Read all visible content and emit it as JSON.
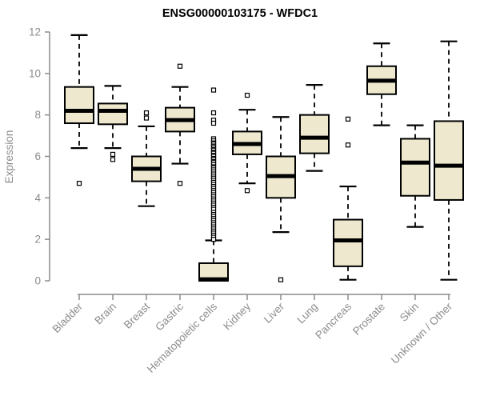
{
  "chart_data": {
    "type": "boxplot",
    "title": "ENSG00000103175 - WFDC1",
    "ylabel": "Expression",
    "xlabel": "",
    "ylim": [
      0,
      12
    ],
    "yticks": [
      0,
      2,
      4,
      6,
      8,
      10,
      12
    ],
    "grid": false,
    "legend": "none",
    "categories": [
      "Bladder",
      "Brain",
      "Breast",
      "Gastric",
      "Hematopoietic cells",
      "Kidney",
      "Liver",
      "Lung",
      "Pancreas",
      "Prostate",
      "Skin",
      "Unknown / Other"
    ],
    "boxes": [
      {
        "category": "Bladder",
        "whisker_low": 6.4,
        "q1": 7.6,
        "median": 8.2,
        "q3": 9.35,
        "whisker_high": 11.85,
        "outliers": [
          4.7
        ]
      },
      {
        "category": "Brain",
        "whisker_low": 6.4,
        "q1": 7.55,
        "median": 8.2,
        "q3": 8.55,
        "whisker_high": 9.4,
        "outliers": [
          6.1,
          5.85
        ]
      },
      {
        "category": "Breast",
        "whisker_low": 3.6,
        "q1": 4.8,
        "median": 5.4,
        "q3": 6.0,
        "whisker_high": 7.45,
        "outliers": [
          8.1,
          7.85
        ]
      },
      {
        "category": "Gastric",
        "whisker_low": 5.65,
        "q1": 7.2,
        "median": 7.75,
        "q3": 8.35,
        "whisker_high": 9.35,
        "outliers": [
          10.35,
          4.7
        ]
      },
      {
        "category": "Hematopoietic cells",
        "whisker_low": 0.0,
        "q1": 0.0,
        "median": 0.07,
        "q3": 0.85,
        "whisker_high": 1.95,
        "outliers": [
          9.2,
          8.1,
          7.75,
          7.6,
          6.85,
          6.75,
          6.65,
          6.6,
          6.5,
          6.45,
          6.35,
          6.3,
          6.2,
          6.15,
          6.05,
          6.0,
          5.9,
          5.85,
          5.75,
          5.7,
          5.6,
          5.5,
          5.45,
          5.35,
          5.25,
          5.15,
          5.05,
          4.95,
          4.85,
          4.75,
          4.65,
          4.55,
          4.45,
          4.35,
          4.25,
          4.15,
          4.05,
          3.95,
          3.85,
          3.75,
          3.65,
          3.55,
          3.45,
          3.3,
          3.2,
          3.1,
          3.0,
          2.9,
          2.8,
          2.7,
          2.6,
          2.5,
          2.4,
          2.3,
          2.2,
          2.1,
          2.0
        ]
      },
      {
        "category": "Kidney",
        "whisker_low": 4.7,
        "q1": 6.1,
        "median": 6.6,
        "q3": 7.2,
        "whisker_high": 8.25,
        "outliers": [
          8.95,
          4.35
        ]
      },
      {
        "category": "Liver",
        "whisker_low": 2.35,
        "q1": 4.0,
        "median": 5.05,
        "q3": 6.0,
        "whisker_high": 7.9,
        "outliers": [
          0.05
        ]
      },
      {
        "category": "Lung",
        "whisker_low": 5.3,
        "q1": 6.15,
        "median": 6.9,
        "q3": 8.0,
        "whisker_high": 9.45,
        "outliers": []
      },
      {
        "category": "Pancreas",
        "whisker_low": 0.05,
        "q1": 0.7,
        "median": 1.95,
        "q3": 2.95,
        "whisker_high": 4.55,
        "outliers": [
          7.8,
          6.55
        ]
      },
      {
        "category": "Prostate",
        "whisker_low": 7.5,
        "q1": 9.0,
        "median": 9.65,
        "q3": 10.35,
        "whisker_high": 11.45,
        "outliers": []
      },
      {
        "category": "Skin",
        "whisker_low": 2.6,
        "q1": 4.1,
        "median": 5.7,
        "q3": 6.85,
        "whisker_high": 7.5,
        "outliers": []
      },
      {
        "category": "Unknown / Other",
        "whisker_low": 0.05,
        "q1": 3.9,
        "median": 5.55,
        "q3": 7.7,
        "whisker_high": 11.55,
        "outliers": []
      }
    ],
    "colors": {
      "box_fill": "#EDE8CE",
      "box_border": "#000000",
      "median": "#000000",
      "whisker": "#000000",
      "outlier_stroke": "#000000",
      "outlier_fill": "#ffffff",
      "axis": "#8c8c8c",
      "axis_text": "#8c8c8c",
      "title_text": "#000000",
      "background": "#ffffff"
    }
  }
}
